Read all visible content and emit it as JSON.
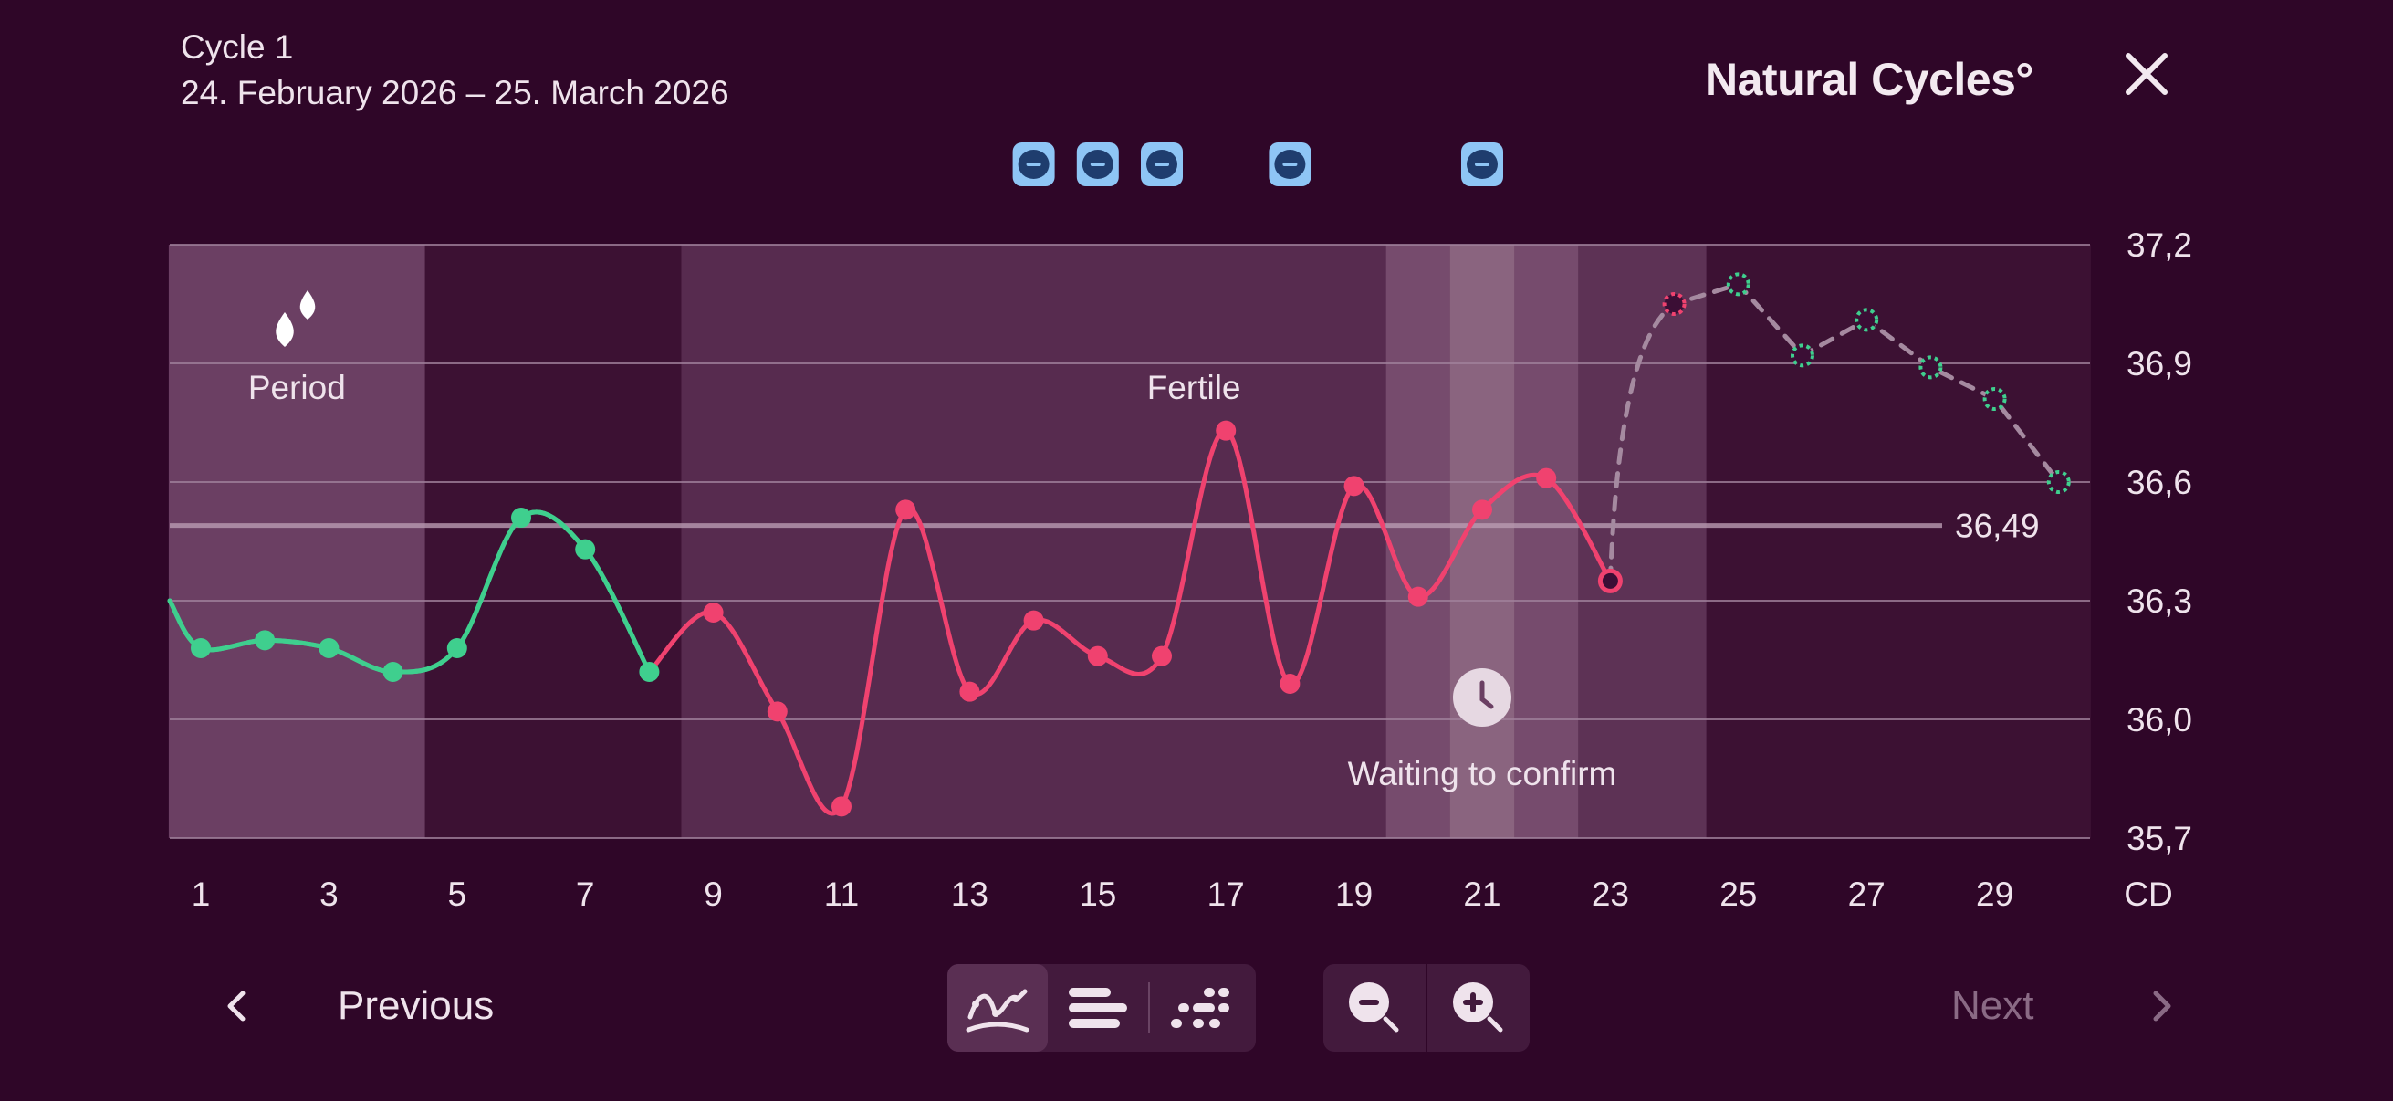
{
  "header": {
    "cycle_label": "Cycle 1",
    "date_range": "24. February 2026 – 25. March 2026",
    "brand": "Natural Cycles°",
    "close_icon": "close-icon"
  },
  "chart_data": {
    "type": "line",
    "x": [
      1,
      2,
      3,
      4,
      5,
      6,
      7,
      8,
      9,
      10,
      11,
      12,
      13,
      14,
      15,
      16,
      17,
      18,
      19,
      20,
      21,
      22,
      23
    ],
    "x_ticks": [
      "1",
      "3",
      "5",
      "7",
      "9",
      "11",
      "13",
      "15",
      "17",
      "19",
      "21",
      "23",
      "25",
      "27",
      "29"
    ],
    "x_unit": "CD",
    "y_ticks": [
      "37,2",
      "36,9",
      "36,6",
      "36,3",
      "36,0",
      "35,7"
    ],
    "ylim": [
      35.7,
      37.2
    ],
    "xlim": [
      0.5,
      30.5
    ],
    "series": [
      {
        "role": "measured",
        "points": [
          {
            "cd": 1,
            "v": 36.18,
            "color": "#3fcf8e"
          },
          {
            "cd": 2,
            "v": 36.2,
            "color": "#3fcf8e"
          },
          {
            "cd": 3,
            "v": 36.18,
            "color": "#3fcf8e"
          },
          {
            "cd": 4,
            "v": 36.12,
            "color": "#3fcf8e"
          },
          {
            "cd": 5,
            "v": 36.18,
            "color": "#3fcf8e"
          },
          {
            "cd": 6,
            "v": 36.51,
            "color": "#3fcf8e"
          },
          {
            "cd": 7,
            "v": 36.43,
            "color": "#3fcf8e"
          },
          {
            "cd": 8,
            "v": 36.12,
            "color": "#3fcf8e"
          },
          {
            "cd": 9,
            "v": 36.27,
            "color": "#f0426f"
          },
          {
            "cd": 10,
            "v": 36.02,
            "color": "#f0426f"
          },
          {
            "cd": 11,
            "v": 35.78,
            "color": "#f0426f"
          },
          {
            "cd": 12,
            "v": 36.53,
            "color": "#f0426f"
          },
          {
            "cd": 13,
            "v": 36.07,
            "color": "#f0426f"
          },
          {
            "cd": 14,
            "v": 36.25,
            "color": "#f0426f"
          },
          {
            "cd": 15,
            "v": 36.16,
            "color": "#f0426f"
          },
          {
            "cd": 16,
            "v": 36.16,
            "color": "#f0426f"
          },
          {
            "cd": 17,
            "v": 36.73,
            "color": "#f0426f"
          },
          {
            "cd": 18,
            "v": 36.09,
            "color": "#f0426f"
          },
          {
            "cd": 19,
            "v": 36.59,
            "color": "#f0426f"
          },
          {
            "cd": 20,
            "v": 36.31,
            "color": "#f0426f"
          },
          {
            "cd": 21,
            "v": 36.53,
            "color": "#f0426f"
          },
          {
            "cd": 22,
            "v": 36.61,
            "color": "#f0426f"
          },
          {
            "cd": 23,
            "v": 36.35,
            "color": "#f0426f",
            "hollow": true
          }
        ]
      },
      {
        "role": "predicted",
        "points": [
          {
            "cd": 24,
            "v": 37.05,
            "color": "#f0426f"
          },
          {
            "cd": 25,
            "v": 37.1,
            "color": "#3fcf8e"
          },
          {
            "cd": 26,
            "v": 36.92,
            "color": "#3fcf8e"
          },
          {
            "cd": 27,
            "v": 37.01,
            "color": "#3fcf8e"
          },
          {
            "cd": 28,
            "v": 36.89,
            "color": "#3fcf8e"
          },
          {
            "cd": 29,
            "v": 36.81,
            "color": "#3fcf8e"
          },
          {
            "cd": 30,
            "v": 36.6,
            "color": "#3fcf8e"
          }
        ]
      }
    ],
    "coverline": {
      "value": 36.49,
      "label": "36,49"
    },
    "phases": [
      {
        "name": "period",
        "from": 0.5,
        "to": 4.5,
        "label": "Period",
        "icon": "drops-icon"
      },
      {
        "name": "fertile",
        "from": 8.5,
        "to": 24.5,
        "label": "Fertile"
      },
      {
        "name": "waiting",
        "from": 19.5,
        "to": 22.5,
        "label": "Waiting to confirm",
        "icon": "clock-icon"
      }
    ],
    "marker_days": [
      14,
      15,
      16,
      18,
      21
    ],
    "marker_icon": "test-minus-icon"
  },
  "navigation": {
    "previous_label": "Previous",
    "next_label": "Next",
    "prev_icon": "chevron-left-icon",
    "next_icon": "chevron-right-icon"
  },
  "view_modes": [
    {
      "name": "curve",
      "icon": "curve-view-icon",
      "active": true
    },
    {
      "name": "bars",
      "icon": "bars-view-icon",
      "active": false
    },
    {
      "name": "dots",
      "icon": "dots-view-icon",
      "active": false
    }
  ],
  "zoom": [
    {
      "name": "zoom-out",
      "icon": "zoom-out-icon"
    },
    {
      "name": "zoom-in",
      "icon": "zoom-in-icon"
    }
  ],
  "colors": {
    "background": "#2f0628",
    "green": "#3fcf8e",
    "pink": "#f0426f",
    "marker": "#8ec5f5"
  }
}
